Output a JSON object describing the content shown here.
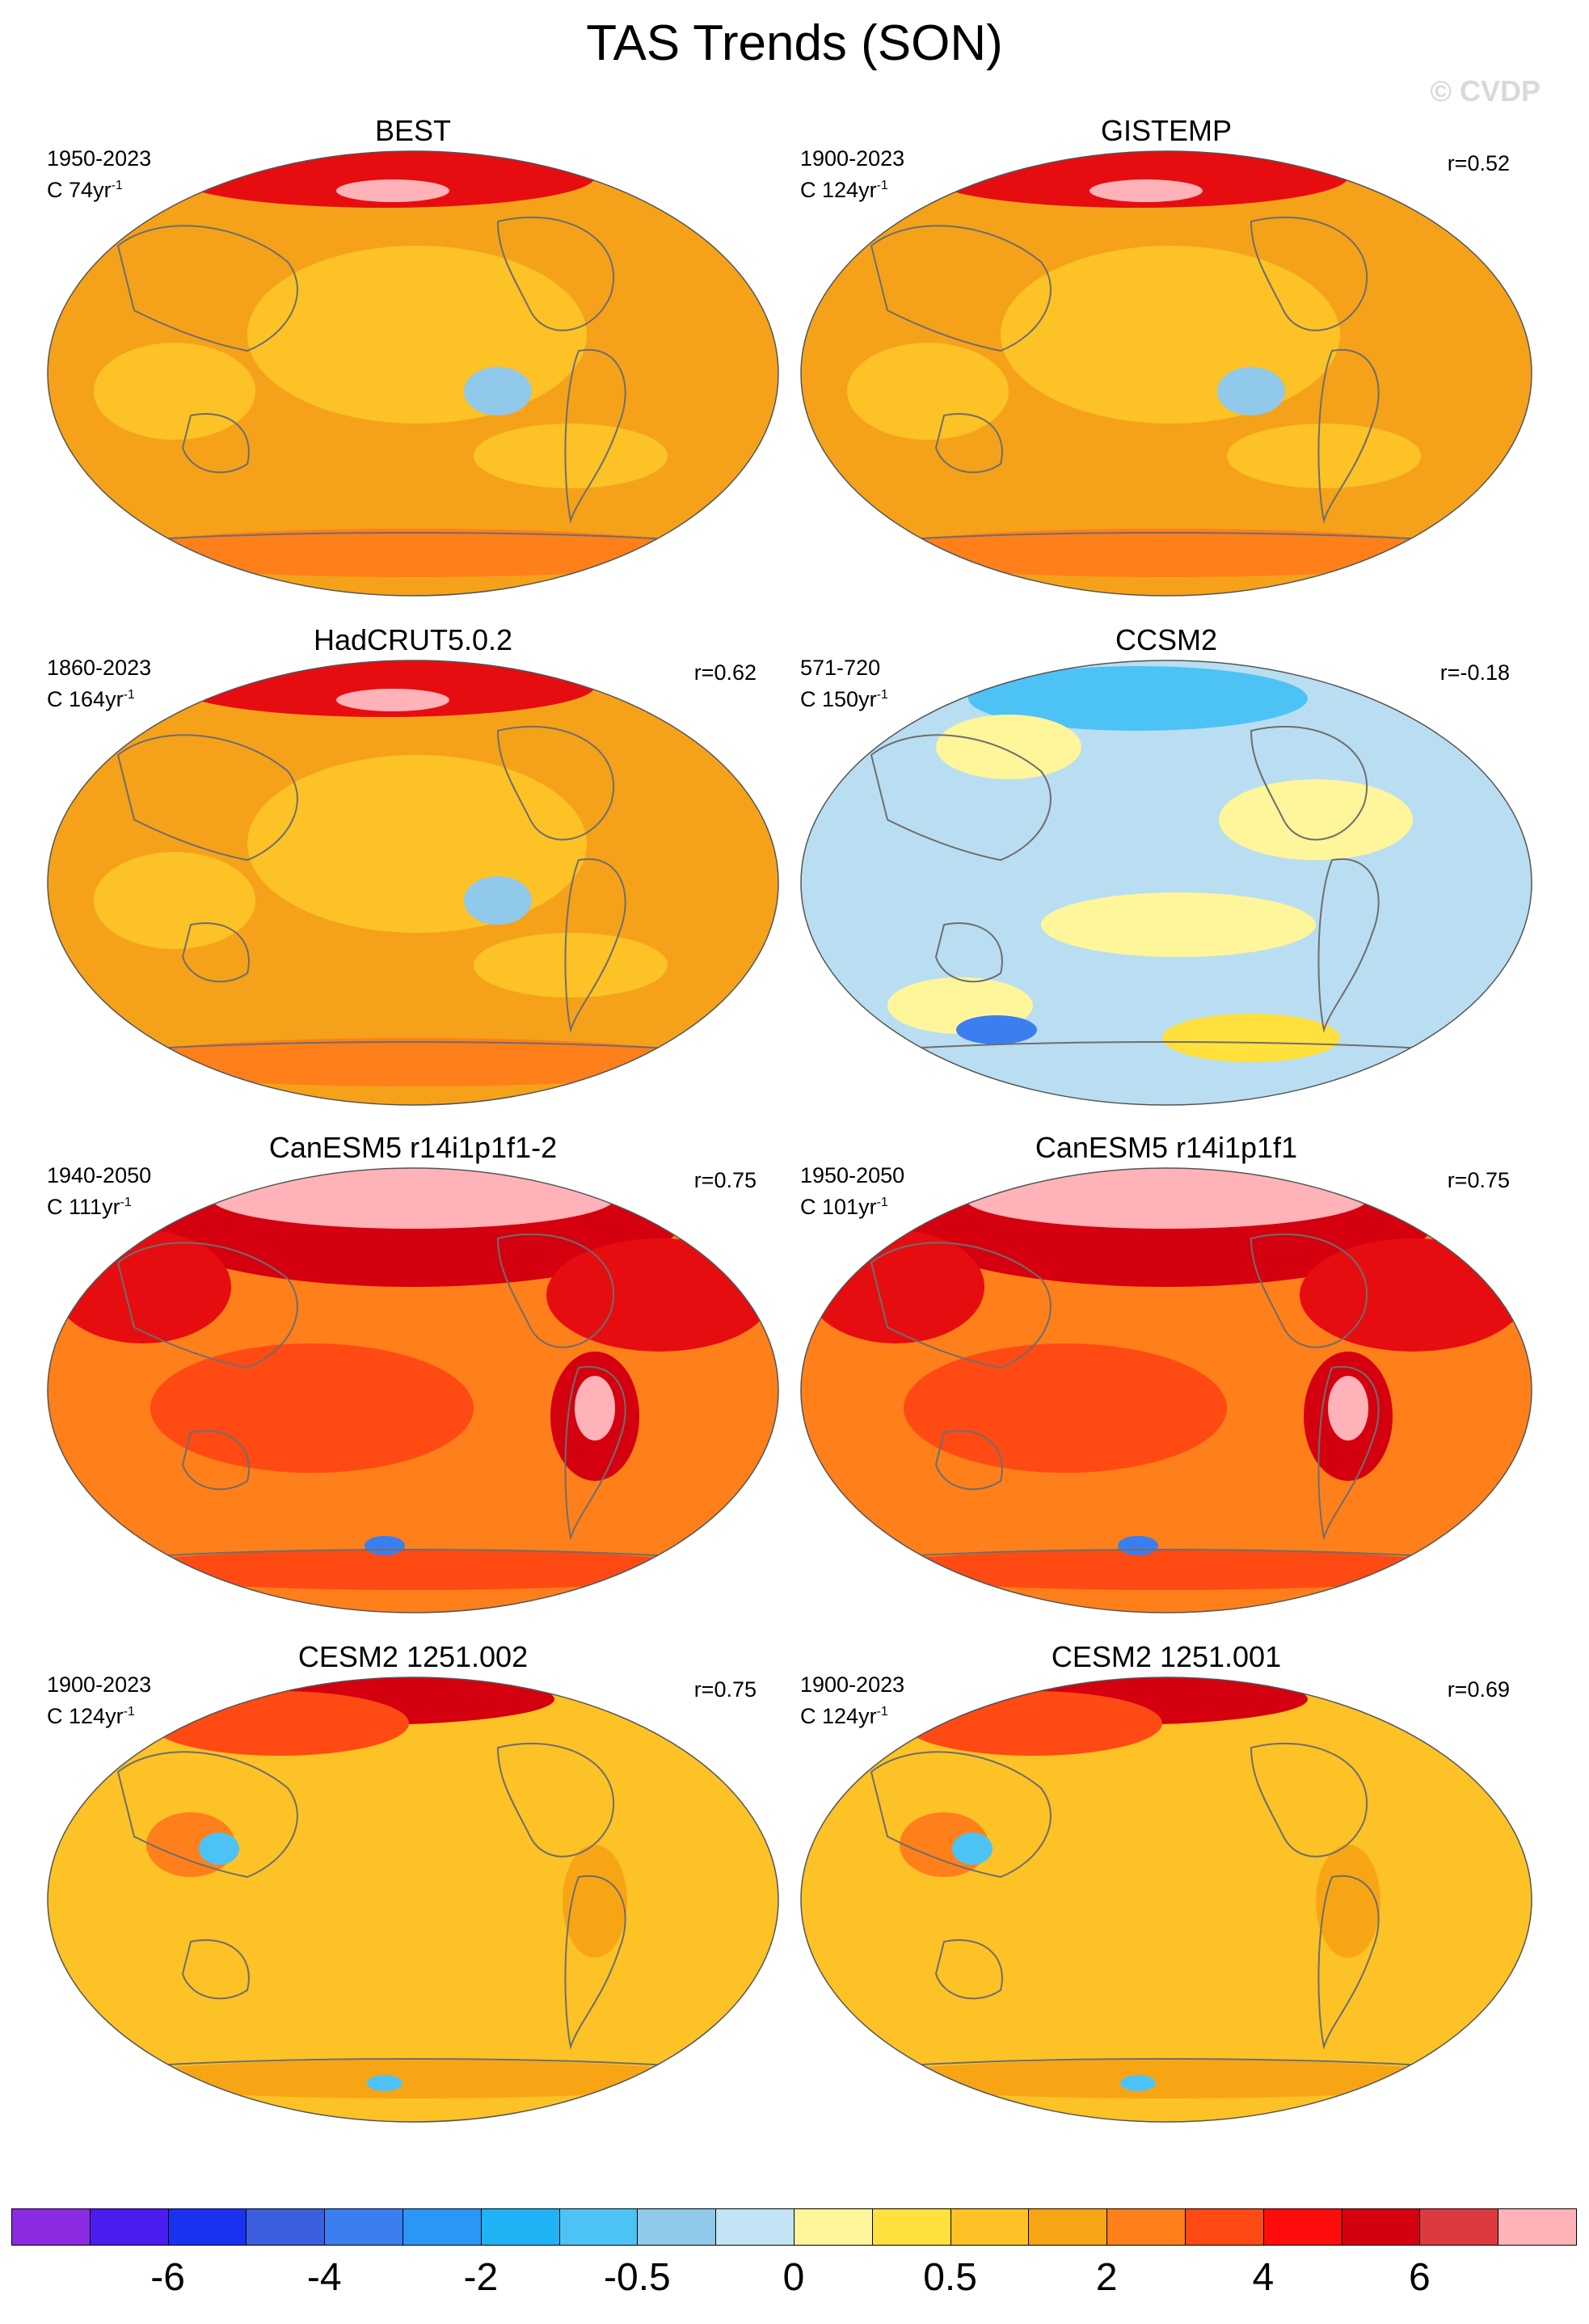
{
  "title": "TAS Trends (SON)",
  "watermark": "© CVDP",
  "panels": [
    {
      "title": "BEST",
      "period": "1950-2023",
      "units_prefix": "C",
      "trend_len": "74",
      "units_suffix": "yr",
      "units_exp": "-1",
      "r": "",
      "base": "#f5a21a"
    },
    {
      "title": "GISTEMP",
      "period": "1900-2023",
      "units_prefix": "C",
      "trend_len": "124",
      "units_suffix": "yr",
      "units_exp": "-1",
      "r": "r=0.52",
      "base": "#f5a21a"
    },
    {
      "title": "HadCRUT5.0.2",
      "period": "1860-2023",
      "units_prefix": "C",
      "trend_len": "164",
      "units_suffix": "yr",
      "units_exp": "-1",
      "r": "r=0.62",
      "base": "#f5a21a"
    },
    {
      "title": "CCSM2",
      "period": "571-720",
      "units_prefix": "C",
      "trend_len": "150",
      "units_suffix": "yr",
      "units_exp": "-1",
      "r": "r=-0.18",
      "base": "#b9def2"
    },
    {
      "title": "CanESM5 r14i1p1f1-2",
      "period": "1940-2050",
      "units_prefix": "C",
      "trend_len": "111",
      "units_suffix": "yr",
      "units_exp": "-1",
      "r": "r=0.75",
      "base": "#ff7f1a"
    },
    {
      "title": "CanESM5 r14i1p1f1",
      "period": "1950-2050",
      "units_prefix": "C",
      "trend_len": "101",
      "units_suffix": "yr",
      "units_exp": "-1",
      "r": "r=0.75",
      "base": "#ff7f1a"
    },
    {
      "title": "CESM2 1251.002",
      "period": "1900-2023",
      "units_prefix": "C",
      "trend_len": "124",
      "units_suffix": "yr",
      "units_exp": "-1",
      "r": "r=0.75",
      "base": "#fcc226"
    },
    {
      "title": "CESM2 1251.001",
      "period": "1900-2023",
      "units_prefix": "C",
      "trend_len": "124",
      "units_suffix": "yr",
      "units_exp": "-1",
      "r": "r=0.69",
      "base": "#fcc226"
    }
  ],
  "colorbar": {
    "colors": [
      "#8a2be2",
      "#4b1cf0",
      "#1a32f0",
      "#3c5fe0",
      "#3b7ef0",
      "#2a96f5",
      "#1fb3f5",
      "#4dc3f5",
      "#90c9ea",
      "#c2e4f5",
      "#fff59a",
      "#ffe03c",
      "#fcc226",
      "#f8a515",
      "#ff7f1a",
      "#ff4a14",
      "#ff0d0d",
      "#d40010",
      "#dc3a3e",
      "#ffb3b8"
    ],
    "labels": [
      {
        "text": "-6",
        "boundary": 2
      },
      {
        "text": "-4",
        "boundary": 4
      },
      {
        "text": "-2",
        "boundary": 6
      },
      {
        "text": "-0.5",
        "boundary": 8
      },
      {
        "text": "0",
        "boundary": 10
      },
      {
        "text": "0.5",
        "boundary": 12
      },
      {
        "text": "2",
        "boundary": 14
      },
      {
        "text": "4",
        "boundary": 16
      },
      {
        "text": "6",
        "boundary": 18
      }
    ]
  }
}
